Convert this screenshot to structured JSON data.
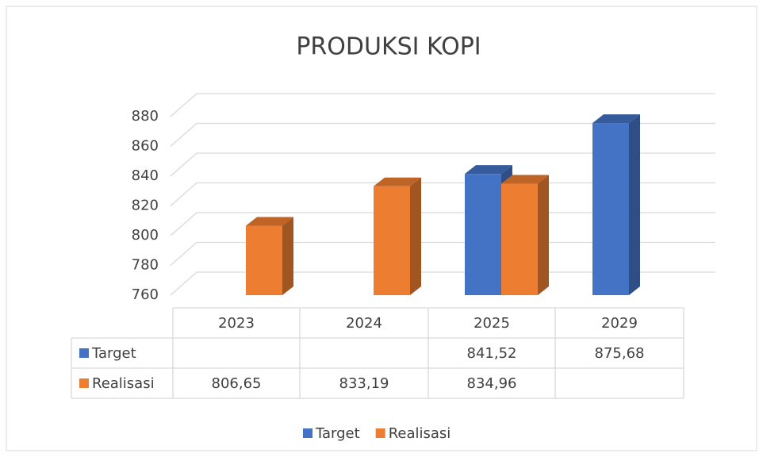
{
  "chart_data": {
    "type": "bar3d",
    "title": "PRODUKSI KOPI",
    "categories": [
      "2023",
      "2024",
      "2025",
      "2029"
    ],
    "series": [
      {
        "name": "Target",
        "color": "#4472c4",
        "values": [
          null,
          null,
          841.52,
          875.68
        ],
        "value_labels": [
          null,
          null,
          "841,52",
          "875,68"
        ]
      },
      {
        "name": "Realisasi",
        "color": "#ed7d31",
        "values": [
          806.65,
          833.19,
          834.96,
          null
        ],
        "value_labels": [
          "806,65",
          "833,19",
          "834,96",
          null
        ]
      }
    ],
    "ylim": [
      760,
      880
    ],
    "yticks": [
      760,
      780,
      800,
      820,
      840,
      860,
      880
    ],
    "grid": true,
    "legend": "bottom",
    "data_table": true
  }
}
